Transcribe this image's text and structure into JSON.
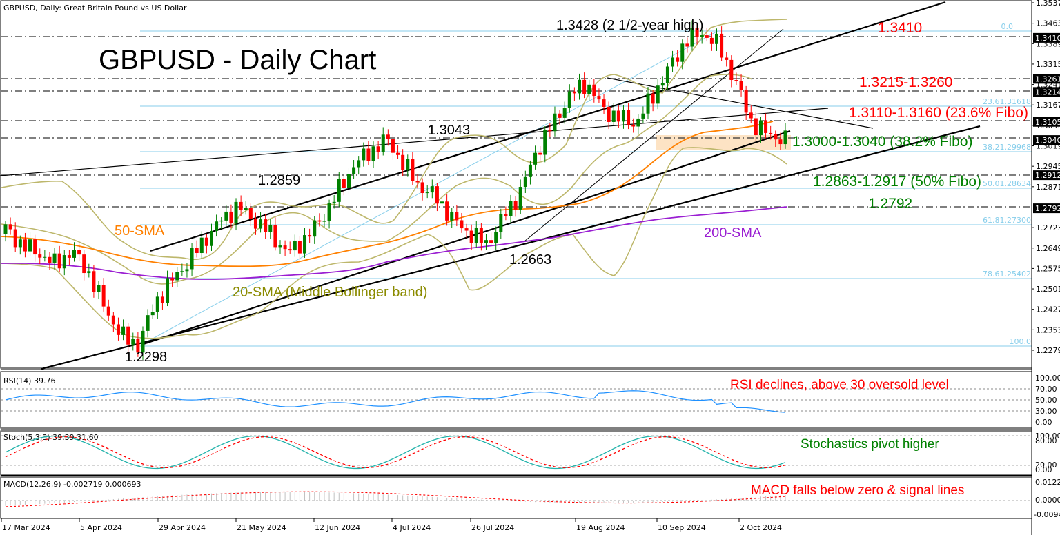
{
  "header": {
    "symbol_title": "GBPUSD, Daily:  Great Britain Pound vs US Dollar",
    "big_title": "GBPUSD - Daily Chart"
  },
  "colors": {
    "bull": "#008000",
    "bear": "#ff0000",
    "sma50": "#ff8000",
    "sma200": "#9a1ed2",
    "bollinger": "#bdb76b",
    "fibo": "#87ceeb",
    "trend": "#000000",
    "annotation_red": "#ff0000",
    "annotation_green": "#008000",
    "annotation_olive": "#8b8b00",
    "rsi_line": "#1e90ff",
    "stoch_main": "#20b2aa",
    "stoch_signal": "#ff0000",
    "macd_hist": "#c0c0c0",
    "zone_fill": "#fde3c4"
  },
  "price_axis": {
    "labels": [
      "1.35370",
      "1.34630",
      "1.33890",
      "1.33150",
      "1.32410",
      "1.31670",
      "1.30930",
      "1.30190",
      "1.29450",
      "1.28710",
      "1.27230",
      "1.26490",
      "1.25750",
      "1.25010",
      "1.24270",
      "1.23530",
      "1.22790"
    ],
    "highlighted": [
      "1.34100",
      "1.32616",
      "1.32141",
      "1.31058",
      "1.30400",
      "1.29127",
      "1.27929"
    ]
  },
  "fibo_levels": [
    {
      "label": "0.0",
      "price": 1.3428
    },
    {
      "label": "23.61.31618",
      "price": 1.31618
    },
    {
      "label": "38.21.29968",
      "price": 1.29968
    },
    {
      "label": "50.01.28634",
      "price": 1.28634
    },
    {
      "label": "61.81.27300",
      "price": 1.273
    },
    {
      "label": "78.61.25402",
      "price": 1.25402
    },
    {
      "label": "100.0",
      "price": 1.2298
    }
  ],
  "annotations": {
    "high": "1.3428 (2 1/2-year high)",
    "r1": "1.3410",
    "r2": "1.3215-1.3260",
    "r3": "1.3110-1.3160 (23.6% Fibo)",
    "s1": "1.3000-1.3040 (38.2% Fibo)",
    "s2": "1.2863-1.2917 (50% Fibo)",
    "s3": "1.2792",
    "peak1": "1.3043",
    "peak2": "1.2859",
    "low1": "1.2663",
    "low2": "1.2298",
    "sma50": "50-SMA",
    "sma200": "200-SMA",
    "sma20": "20-SMA (Middle Bollinger band)"
  },
  "indicators": {
    "rsi": {
      "title": "RSI(14) 39.76",
      "axis": [
        "100.00",
        "70.00",
        "50.00",
        "30.00",
        "0.00"
      ],
      "comment": "RSI declines, above 30 oversold level"
    },
    "stoch": {
      "title": "Stoch(5,3,3) 39.39 31.60",
      "axis": [
        "100.00",
        "80.00",
        "20.00",
        "0.00"
      ],
      "comment": "Stochastics pivot higher"
    },
    "macd": {
      "title": "MACD(12,26,9) -0.002719 0.000693",
      "axis": [
        "0.012231",
        "0.000000",
        "-0.009454"
      ],
      "comment": "MACD falls below zero & signal lines"
    }
  },
  "time_axis": {
    "labels": [
      "17 Mar 2024",
      "5 Apr 2024",
      "29 Apr 2024",
      "21 May 2024",
      "12 Jun 2024",
      "4 Jul 2024",
      "26 Jul 2024",
      "19 Aug 2024",
      "10 Sep 2024",
      "2 Oct 2024"
    ]
  },
  "chart_data": {
    "type": "candlestick",
    "title": "GBPUSD - Daily Chart",
    "subtitle": "GBPUSD, Daily: Great Britain Pound vs US Dollar",
    "xlabel": "",
    "ylabel": "",
    "ylim": [
      1.2208,
      1.3537
    ],
    "grid": false,
    "x_ticks": [
      "17 Mar 2024",
      "5 Apr 2024",
      "29 Apr 2024",
      "21 May 2024",
      "12 Jun 2024",
      "4 Jul 2024",
      "26 Jul 2024",
      "19 Aug 2024",
      "10 Sep 2024",
      "2 Oct 2024"
    ],
    "key_levels": {
      "resistance": [
        1.341,
        1.3215,
        1.326,
        1.311,
        1.316
      ],
      "support": [
        1.3,
        1.304,
        1.2863,
        1.2917,
        1.2792
      ],
      "swing_points": {
        "high_2_5yr": 1.3428,
        "peak_jul": 1.3043,
        "peak_jun": 1.2859,
        "low_aug": 1.2663,
        "low_apr": 1.2298
      }
    },
    "series": [
      {
        "name": "Close (approx)",
        "values": [
          1.272,
          1.266,
          1.263,
          1.259,
          1.264,
          1.256,
          1.243,
          1.233,
          1.2298,
          1.245,
          1.253,
          1.26,
          1.268,
          1.275,
          1.28,
          1.275,
          1.27,
          1.263,
          1.268,
          1.275,
          1.285,
          1.295,
          1.3,
          1.3043,
          1.295,
          1.287,
          1.283,
          1.275,
          1.27,
          1.2663,
          1.276,
          1.285,
          1.3,
          1.31,
          1.32,
          1.325,
          1.315,
          1.312,
          1.31,
          1.32,
          1.33,
          1.34,
          1.3428,
          1.338,
          1.325,
          1.31,
          1.306,
          1.304
        ]
      },
      {
        "name": "50-SMA",
        "values": [
          1.268,
          1.267,
          1.265,
          1.262,
          1.261,
          1.262,
          1.265,
          1.27,
          1.274,
          1.276,
          1.28,
          1.285,
          1.29,
          1.296,
          1.302,
          1.306,
          1.308
        ]
      },
      {
        "name": "200-SMA",
        "values": [
          1.26,
          1.259,
          1.258,
          1.257,
          1.258,
          1.26,
          1.262,
          1.264,
          1.266,
          1.269,
          1.272,
          1.275,
          1.278,
          1.2792
        ]
      }
    ],
    "indicators": {
      "RSI(14)": {
        "last": 39.76,
        "levels": [
          70,
          50,
          30
        ]
      },
      "Stoch(5,3,3)": {
        "main": 39.39,
        "signal": 31.6,
        "levels": [
          80,
          20
        ]
      },
      "MACD(12,26,9)": {
        "main": -0.002719,
        "signal": 0.000693,
        "range": [
          -0.009454,
          0.012231
        ]
      }
    }
  }
}
